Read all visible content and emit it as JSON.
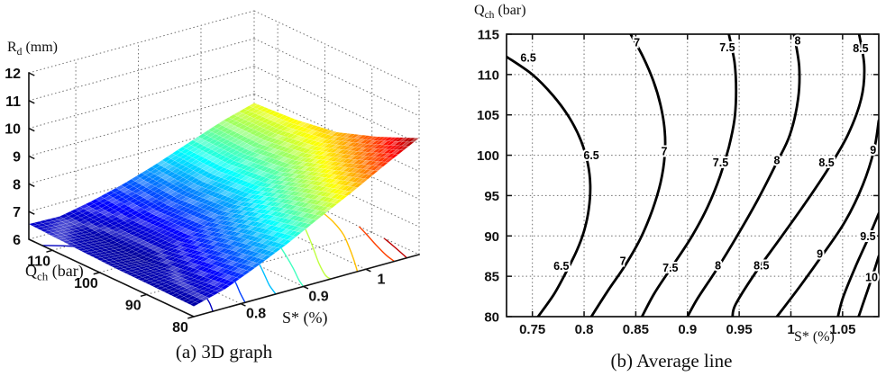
{
  "figure": {
    "background": "#ffffff"
  },
  "chart_data": [
    {
      "id": "surface-3d",
      "type": "surface",
      "caption": "(a)  3D graph",
      "xlabel": "S* (%)",
      "ylabel": "Qch (bar)",
      "zlabel": "Rd (mm)",
      "xlabel_parts": [
        "S* (%)"
      ],
      "ylabel_parts": [
        "Q",
        "ch",
        " (bar)"
      ],
      "zlabel_parts": [
        "R",
        "d",
        " (mm)"
      ],
      "x_range": [
        0.725,
        1.085
      ],
      "y_range": [
        80,
        115
      ],
      "z_range": [
        6,
        12
      ],
      "x_ticks": [
        0.8,
        0.9,
        1
      ],
      "x_tick_labels": [
        "0.8",
        "0.9",
        "1"
      ],
      "y_ticks": [
        110,
        100,
        90,
        80
      ],
      "y_tick_labels": [
        "110",
        "100",
        "90",
        "80"
      ],
      "z_ticks": [
        6,
        7,
        8,
        9,
        10,
        11,
        12
      ],
      "z_tick_labels": [
        "6",
        "7",
        "8",
        "9",
        "10",
        "11",
        "12"
      ],
      "colormap": "jet",
      "caxis": [
        6.25,
        10.25
      ],
      "grid_on": true,
      "grid_s": [
        0.725,
        0.775,
        0.825,
        0.875,
        0.925,
        0.975,
        1.035,
        1.085
      ],
      "grid_q": [
        80,
        88.75,
        97.5,
        106.25,
        115
      ],
      "z_values": [
        [
          6.37,
          6.68,
          7.17,
          7.7,
          8.3,
          8.88,
          9.62,
          10.2
        ],
        [
          6.4,
          6.52,
          6.92,
          7.4,
          7.92,
          8.45,
          9.05,
          9.55
        ],
        [
          6.42,
          6.35,
          6.62,
          7.0,
          7.45,
          7.95,
          8.55,
          9.02
        ],
        [
          6.48,
          6.4,
          6.6,
          6.92,
          7.32,
          7.8,
          8.32,
          8.78
        ],
        [
          6.55,
          6.52,
          6.75,
          7.05,
          7.42,
          7.85,
          8.35,
          8.68
        ]
      ]
    },
    {
      "id": "contour-plot",
      "type": "contour",
      "caption": "(b) Average line",
      "xlabel": "S* (%)",
      "ylabel": "Qch (bar)",
      "xlabel_parts": [
        "S* (%)"
      ],
      "ylabel_parts": [
        "Q",
        "ch",
        " (bar)"
      ],
      "x_range": [
        0.725,
        1.085
      ],
      "y_range": [
        80,
        115
      ],
      "x_ticks": [
        0.75,
        0.8,
        0.85,
        0.9,
        0.95,
        1,
        1.05
      ],
      "x_tick_labels": [
        "0.75",
        "0.8",
        "0.85",
        "0.9",
        "0.95",
        "1",
        "1.05"
      ],
      "y_ticks": [
        80,
        85,
        90,
        95,
        100,
        105,
        110,
        115
      ],
      "y_tick_labels": [
        "80",
        "85",
        "90",
        "95",
        "100",
        "105",
        "110",
        "115"
      ],
      "grid_on": true,
      "line_color": "#000000",
      "grid_color": "#6f6f6f",
      "lines": [
        {
          "level": 6.5,
          "text": "6.5",
          "points": [
            [
              0.725,
              112.2
            ],
            [
              0.75,
              110
            ],
            [
              0.77,
              107.4
            ],
            [
              0.786,
              104.6
            ],
            [
              0.797,
              101.8
            ],
            [
              0.8035,
              99
            ],
            [
              0.806,
              96.3
            ],
            [
              0.8045,
              93.3
            ],
            [
              0.8,
              90.6
            ],
            [
              0.793,
              88.2
            ],
            [
              0.783,
              85.6
            ],
            [
              0.771,
              82.8
            ],
            [
              0.7555,
              80
            ]
          ],
          "labels": [
            [
              0.746,
              112.1
            ],
            [
              0.807,
              100
            ],
            [
              0.778,
              86.3
            ]
          ]
        },
        {
          "level": 7,
          "text": "7",
          "points": [
            [
              0.845,
              115
            ],
            [
              0.857,
              112.2
            ],
            [
              0.867,
              109.2
            ],
            [
              0.874,
              106.2
            ],
            [
              0.878,
              103
            ],
            [
              0.878,
              100
            ],
            [
              0.874,
              96.6
            ],
            [
              0.866,
              93.2
            ],
            [
              0.855,
              89.8
            ],
            [
              0.84,
              86.4
            ],
            [
              0.823,
              83.2
            ],
            [
              0.807,
              80
            ]
          ],
          "labels": [
            [
              0.851,
              114
            ],
            [
              0.8775,
              100.5
            ],
            [
              0.8375,
              86.9
            ]
          ]
        },
        {
          "level": 7.5,
          "text": "7.5",
          "points": [
            [
              0.94,
              115
            ],
            [
              0.9455,
              111.5
            ],
            [
              0.947,
              108
            ],
            [
              0.9455,
              104.5
            ],
            [
              0.94,
              101
            ],
            [
              0.9315,
              97.4
            ],
            [
              0.9195,
              93.6
            ],
            [
              0.9035,
              89.8
            ],
            [
              0.8845,
              86.1
            ],
            [
              0.868,
              82.9
            ],
            [
              0.856,
              80
            ]
          ],
          "labels": [
            [
              0.9385,
              113.4
            ],
            [
              0.932,
              99.1
            ],
            [
              0.8835,
              86.1
            ]
          ]
        },
        {
          "level": 8,
          "text": "8",
          "points": [
            [
              1.003,
              115
            ],
            [
              1.008,
              111
            ],
            [
              1.007,
              107
            ],
            [
              0.999,
              102.5
            ],
            [
              0.986,
              99
            ],
            [
              0.968,
              94.5
            ],
            [
              0.948,
              90
            ],
            [
              0.929,
              86
            ],
            [
              0.91,
              82.3
            ],
            [
              0.9,
              80
            ]
          ],
          "labels": [
            [
              1.0065,
              114.2
            ],
            [
              0.9865,
              99.4
            ],
            [
              0.9295,
              86.35
            ]
          ]
        },
        {
          "level": 8.5,
          "text": "8.5",
          "points": [
            [
              1.066,
              115
            ],
            [
              1.071,
              111
            ],
            [
              1.068,
              107
            ],
            [
              1.055,
              102.5
            ],
            [
              1.0355,
              98.2
            ],
            [
              1.0125,
              93.8
            ],
            [
              0.988,
              89.4
            ],
            [
              0.9645,
              85.2
            ],
            [
              0.9465,
              81.5
            ],
            [
              0.9435,
              80
            ]
          ],
          "labels": [
            [
              1.0675,
              113.3
            ],
            [
              1.0345,
              99.1
            ],
            [
              0.9715,
              86.35
            ]
          ]
        },
        {
          "level": 9,
          "text": "9",
          "points": [
            [
              1.085,
              104.3
            ],
            [
              1.0805,
              100.7
            ],
            [
              1.0695,
              96.3
            ],
            [
              1.0525,
              91.8
            ],
            [
              1.032,
              87.9
            ],
            [
              1.0085,
              83.7
            ],
            [
              0.9865,
              80
            ]
          ],
          "labels": [
            [
              1.0795,
              100.7
            ],
            [
              1.028,
              87.8
            ]
          ]
        },
        {
          "level": 9.5,
          "text": "9.5",
          "points": [
            [
              1.085,
              92.8
            ],
            [
              1.0755,
              89.9
            ],
            [
              1.0625,
              86.2
            ],
            [
              1.0505,
              82.4
            ],
            [
              1.0455,
              80
            ]
          ],
          "labels": [
            [
              1.0745,
              90
            ]
          ]
        },
        {
          "level": 10,
          "text": "10",
          "points": [
            [
              1.085,
              87.5
            ],
            [
              1.0775,
              84.5
            ],
            [
              1.069,
              81.3
            ],
            [
              1.0655,
              80
            ]
          ],
          "labels": [
            [
              1.078,
              84.9
            ]
          ]
        }
      ]
    }
  ]
}
